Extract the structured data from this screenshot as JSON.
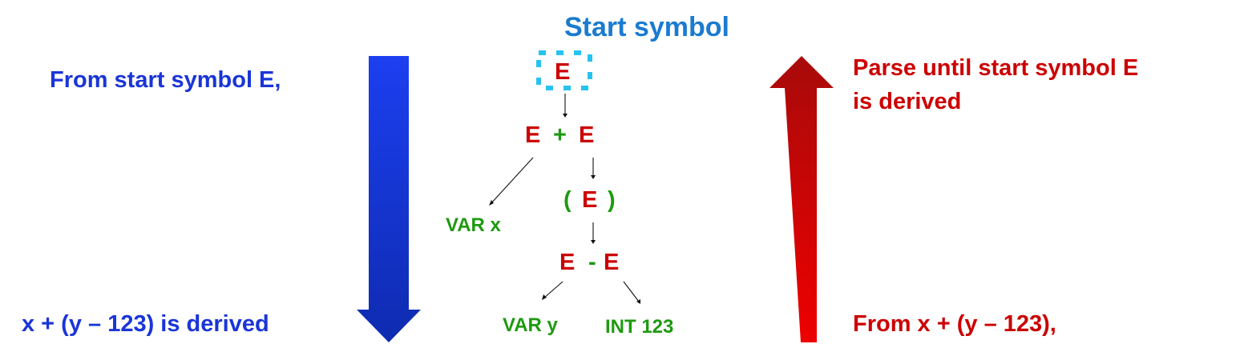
{
  "colors": {
    "top_down": "#1a35d8",
    "bottom_up": "#cc0000",
    "nonterminal": "#cc0000",
    "terminal": "#1e9a10",
    "start_label": "#1a7bd0",
    "highlight": "#27c3f0"
  },
  "labels": {
    "start_symbol": "Start symbol",
    "top_down_start": "From start symbol E,",
    "top_down_end": "x + (y – 123) is derived",
    "bottom_up_goal_line1": "Parse until start symbol E",
    "bottom_up_goal_line2": "is derived",
    "bottom_up_start": "From x + (y – 123),"
  },
  "tree": {
    "root": "E",
    "level1": {
      "left": "E",
      "op": "+",
      "right": "E"
    },
    "level2": {
      "var": "VAR x",
      "open": "(",
      "inner": "E",
      "close": ")"
    },
    "level3": {
      "left": "E",
      "op": "-",
      "right": "E"
    },
    "leaves": {
      "var": "VAR y",
      "int": "INT 123"
    }
  }
}
